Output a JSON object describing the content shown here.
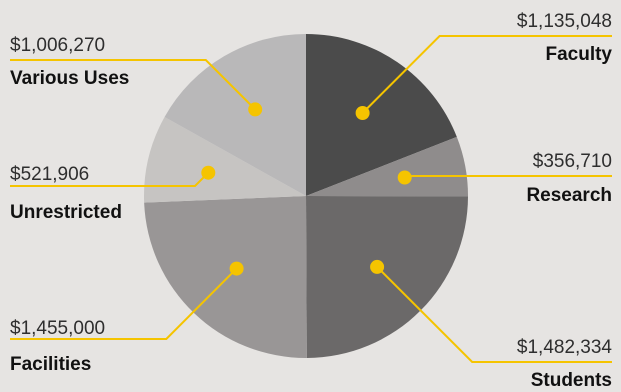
{
  "chart_data": {
    "type": "pie",
    "title": "",
    "slices": [
      {
        "name": "Faculty",
        "value_label": "$1,135,048",
        "value": 1135048,
        "color": "#4b4b4b"
      },
      {
        "name": "Research",
        "value_label": "$356,710",
        "value": 356710,
        "color": "#8f8c8c"
      },
      {
        "name": "Students",
        "value_label": "$1,482,334",
        "value": 1482334,
        "color": "#6b6969"
      },
      {
        "name": "Facilities",
        "value_label": "$1,455,000",
        "value": 1455000,
        "color": "#999696"
      },
      {
        "name": "Unrestricted",
        "value_label": "$521,906",
        "value": 521906,
        "color": "#c6c4c2"
      },
      {
        "name": "Various Uses",
        "value_label": "$1,006,270",
        "value": 1006270,
        "color": "#b9b8b9"
      }
    ],
    "leader_color": "#f5c400",
    "background": "#e6e4e2"
  }
}
